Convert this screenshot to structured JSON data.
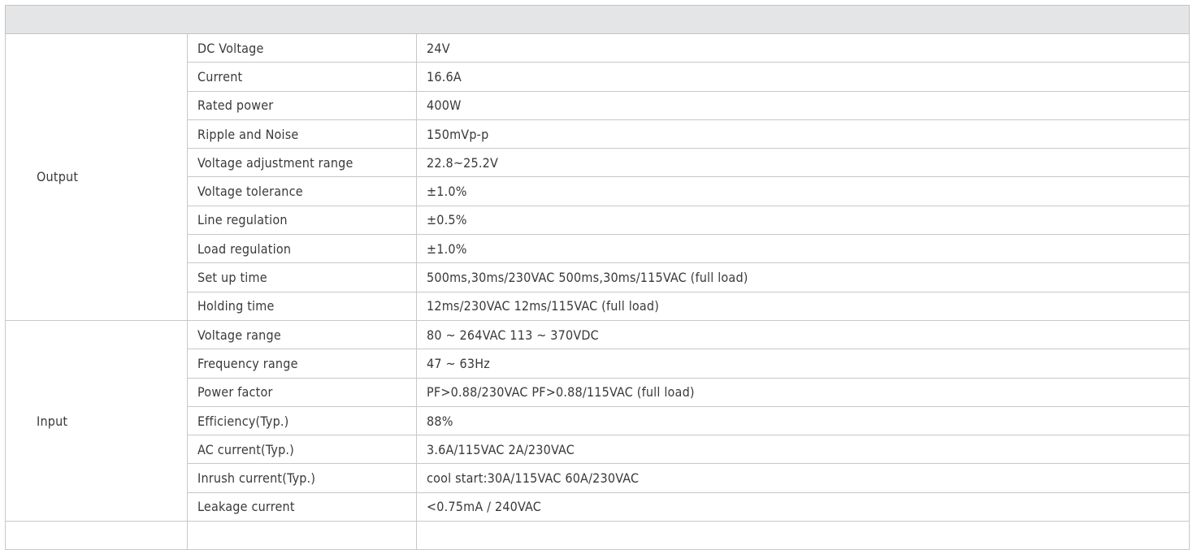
{
  "header": {
    "title": ""
  },
  "groups": [
    {
      "name": "Output",
      "rows": [
        {
          "label": "DC Voltage",
          "value": "24V"
        },
        {
          "label": "Current",
          "value": "16.6A"
        },
        {
          "label": "Rated power",
          "value": "400W"
        },
        {
          "label": "Ripple and Noise",
          "value": "150mVp-p"
        },
        {
          "label": "Voltage adjustment range",
          "value": "22.8~25.2V"
        },
        {
          "label": "Voltage tolerance",
          "value": "±1.0%"
        },
        {
          "label": "Line regulation",
          "value": "±0.5%"
        },
        {
          "label": "Load regulation",
          "value": "±1.0%"
        },
        {
          "label": "Set up time",
          "value": "500ms,30ms/230VAC  500ms,30ms/115VAC (full load)"
        },
        {
          "label": "Holding time",
          "value": "12ms/230VAC 12ms/115VAC (full load)"
        }
      ]
    },
    {
      "name": "Input",
      "rows": [
        {
          "label": "Voltage range",
          "value": "80 ~ 264VAC 113 ~ 370VDC"
        },
        {
          "label": "Frequency range",
          "value": "47 ~ 63Hz"
        },
        {
          "label": "Power factor",
          "value": "PF>0.88/230VAC PF>0.88/115VAC (full load)"
        },
        {
          "label": "Efficiency(Typ.)",
          "value": "88%"
        },
        {
          "label": "AC current(Typ.)",
          "value": "3.6A/115VAC 2A/230VAC"
        },
        {
          "label": "Inrush current(Typ.)",
          "value": "cool start:30A/115VAC 60A/230VAC"
        },
        {
          "label": "Leakage current",
          "value": "<0.75mA / 240VAC"
        }
      ]
    },
    {
      "name": "",
      "rows": [
        {
          "label": "",
          "value": ""
        }
      ]
    }
  ]
}
